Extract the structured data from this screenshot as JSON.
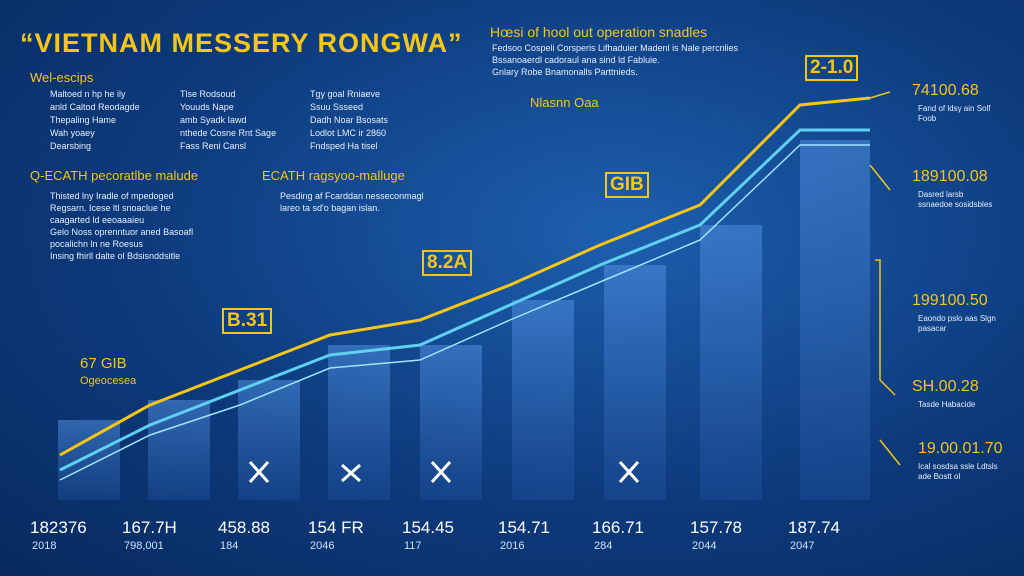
{
  "title": "“VIETNAM MESSERY RONGWA”",
  "header": {
    "title": "Hœsi of hool out operation snadles",
    "lines": [
      "Fedsoo Cospeli Corsperis Lifhaduier Madenl is Nale percnlies",
      "Bssanoaerdl cadoraul ana sind ld Fabluie.",
      "Gnlary Robe Bnamonalls Parttnieds."
    ],
    "tag": "Nlasnn Oaa"
  },
  "legend": {
    "heading": "Wel-escips",
    "columns": [
      [
        "Maltoed n hp he ily",
        "anld Caltod Reodagde",
        "Thepaling Hame",
        "Wah yoaey",
        "Dearsbing"
      ],
      [
        "Tlse Rodsoud",
        "Youuds Nape",
        "amb Syadk Iawd",
        "nthede Cosne Rnt Sage",
        "Fass Reni Cansl"
      ],
      [
        "Tgy goal Rniaeve",
        "Ssuu Ssseed",
        "Dadh Noar Bsosats",
        "Lodlot LMC ir 2860",
        "Fndsped Ha tisel"
      ]
    ]
  },
  "section_left": {
    "heading": "Q-ECATH pecoratlbe malude",
    "lines": [
      "Thisted lny Iradle of mpedoged",
      "Regsarn. Icese ltl snoaclue he",
      "caagarted ld eeoaaaieu",
      "Gelo Noss oprenntuor aned Basoafl",
      "pocalichn ln ne Roesus",
      "Insing fhirll dalte ol Bdsisnddsitle"
    ]
  },
  "section_right": {
    "heading": "ECATH ragsyoo-malluge",
    "lines": [
      "Pesding af Fcarddan nesseconmagl",
      "lareo ta sd'o bagan islan."
    ]
  },
  "side_label": {
    "title": "67 GIB",
    "sub": "Ogeocesea"
  },
  "callouts": [
    "B.31",
    "8.2A",
    "GIB",
    "2-1.0"
  ],
  "right_notes": [
    {
      "value": "74100.68",
      "note": "Fand of ldsy ain Solf Foob"
    },
    {
      "value": "189100.08",
      "note": "Dasred larsb ssnaedoe sosidsbles"
    },
    {
      "value": "199100.50",
      "note": "Eaondo pslo aas Slgn pasacar"
    },
    {
      "value": "SH.00.28",
      "note": "Tasde Habacide"
    },
    {
      "value": "19.00.01.70",
      "note": "Ical sosdsa ssle Ldtsls ade Bostt ol"
    }
  ],
  "x_labels": [
    {
      "value": "182376",
      "sub": "2018"
    },
    {
      "value": "167.7H",
      "sub": "798,001"
    },
    {
      "value": "458.88",
      "sub": "184"
    },
    {
      "value": "154 FR",
      "sub": "2046"
    },
    {
      "value": "154.45",
      "sub": "117"
    },
    {
      "value": "154.71",
      "sub": "2016"
    },
    {
      "value": "166.71",
      "sub": "284"
    },
    {
      "value": "157.78",
      "sub": "2044"
    },
    {
      "value": "187.74",
      "sub": "2047"
    }
  ]
}
